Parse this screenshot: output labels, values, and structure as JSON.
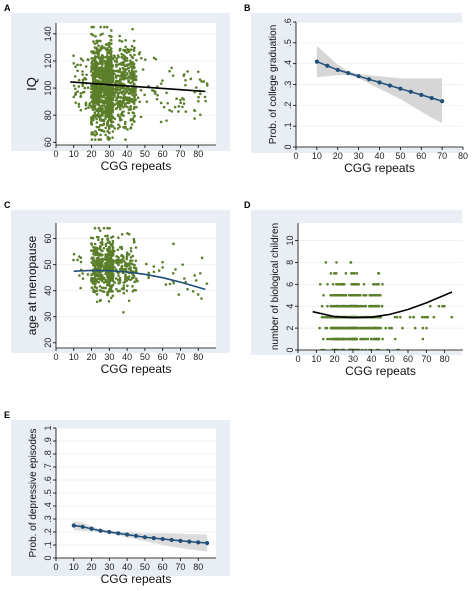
{
  "chart_data": [
    {
      "id": "A",
      "panel_label": "A",
      "type": "scatter",
      "xlabel": "CGG repeats",
      "ylabel": "IQ",
      "xlim": [
        0,
        90
      ],
      "ylim": [
        58,
        148
      ],
      "xticks": [
        0,
        10,
        20,
        30,
        40,
        50,
        60,
        70,
        80
      ],
      "yticks": [
        60,
        80,
        100,
        120,
        140
      ],
      "grid": true,
      "point_color": "#5b7f2b",
      "scatter_clusters": [
        {
          "x_min": 20,
          "x_max": 27,
          "y_mean": 101,
          "y_sd": 16,
          "y_min": 62,
          "y_max": 145,
          "n": 520
        },
        {
          "x_min": 28,
          "x_max": 32,
          "y_mean": 101,
          "y_sd": 15,
          "y_min": 62,
          "y_max": 145,
          "n": 620
        },
        {
          "x_min": 33,
          "x_max": 45,
          "y_mean": 101,
          "y_sd": 15,
          "y_min": 62,
          "y_max": 145,
          "n": 380
        },
        {
          "x_min": 10,
          "x_max": 19,
          "y_mean": 103,
          "y_sd": 13,
          "y_min": 70,
          "y_max": 135,
          "n": 50
        },
        {
          "x_min": 46,
          "x_max": 85,
          "y_mean": 100,
          "y_sd": 14,
          "y_min": 75,
          "y_max": 128,
          "n": 70
        }
      ],
      "series": [
        {
          "kind": "line",
          "color": "#000000",
          "x": [
            8,
            84
          ],
          "y": [
            104.5,
            97.5
          ]
        }
      ]
    },
    {
      "id": "B",
      "panel_label": "B",
      "type": "line",
      "xlabel": "CGG repeats",
      "ylabel": "Prob. of college graduation",
      "xlim": [
        0,
        80
      ],
      "ylim": [
        0,
        0.6
      ],
      "xticks": [
        0,
        10,
        20,
        30,
        40,
        50,
        60,
        70,
        80
      ],
      "yticks": [
        0,
        0.1,
        0.2,
        0.3,
        0.4,
        0.5,
        0.6
      ],
      "ytick_labels": [
        "0",
        ".1",
        ".2",
        ".3",
        ".4",
        ".5",
        ".6"
      ],
      "grid": true,
      "line_color": "#1f4e79",
      "marker": "circle",
      "band_color": "#c8c8c8",
      "x": [
        10,
        15,
        20,
        25,
        30,
        35,
        40,
        45,
        50,
        55,
        60,
        65,
        70
      ],
      "y": [
        0.41,
        0.39,
        0.37,
        0.355,
        0.34,
        0.325,
        0.31,
        0.295,
        0.28,
        0.265,
        0.25,
        0.235,
        0.22
      ],
      "ci_lower": [
        0.335,
        0.34,
        0.345,
        0.345,
        0.33,
        0.305,
        0.28,
        0.255,
        0.23,
        0.2,
        0.17,
        0.14,
        0.115
      ],
      "ci_upper": [
        0.485,
        0.44,
        0.395,
        0.365,
        0.35,
        0.345,
        0.34,
        0.335,
        0.33,
        0.33,
        0.33,
        0.33,
        0.33
      ]
    },
    {
      "id": "C",
      "panel_label": "C",
      "type": "scatter",
      "xlabel": "CGG repeats",
      "ylabel": "age at menopause",
      "xlim": [
        0,
        90
      ],
      "ylim": [
        18,
        66
      ],
      "xticks": [
        0,
        10,
        20,
        30,
        40,
        50,
        60,
        70,
        80
      ],
      "yticks": [
        20,
        30,
        40,
        50,
        60
      ],
      "grid": true,
      "point_color": "#5b7f2b",
      "scatter_clusters": [
        {
          "x_min": 20,
          "x_max": 27,
          "y_mean": 49,
          "y_sd": 5.5,
          "y_min": 20,
          "y_max": 64,
          "n": 230
        },
        {
          "x_min": 28,
          "x_max": 32,
          "y_mean": 49,
          "y_sd": 5,
          "y_min": 30,
          "y_max": 64,
          "n": 260
        },
        {
          "x_min": 33,
          "x_max": 45,
          "y_mean": 48.5,
          "y_sd": 5,
          "y_min": 28,
          "y_max": 62,
          "n": 150
        },
        {
          "x_min": 10,
          "x_max": 19,
          "y_mean": 48,
          "y_sd": 5,
          "y_min": 38,
          "y_max": 58,
          "n": 12
        },
        {
          "x_min": 46,
          "x_max": 85,
          "y_mean": 47,
          "y_sd": 5,
          "y_min": 37,
          "y_max": 58,
          "n": 30
        }
      ],
      "series": [
        {
          "kind": "curve",
          "color": "#1f4e79",
          "x": [
            10,
            20,
            30,
            40,
            50,
            60,
            70,
            84
          ],
          "y": [
            47.5,
            47.8,
            47.7,
            47.2,
            46.3,
            45.0,
            43.3,
            40.5
          ]
        }
      ]
    },
    {
      "id": "D",
      "panel_label": "D",
      "type": "scatter",
      "xlabel": "CGG repeats",
      "ylabel": "number of biological children",
      "xlim": [
        0,
        90
      ],
      "ylim": [
        0,
        11.6
      ],
      "xticks": [
        0,
        10,
        20,
        30,
        40,
        50,
        60,
        70,
        80
      ],
      "yticks": [
        0,
        2,
        4,
        6,
        8,
        10
      ],
      "grid": true,
      "point_color": "#5b7f2b",
      "discrete_y": true,
      "scatter_clusters": [
        {
          "x_min": 18,
          "x_max": 27,
          "y_mean": 3,
          "y_sd": 1.6,
          "y_min": 0,
          "y_max": 10,
          "n": 260
        },
        {
          "x_min": 28,
          "x_max": 32,
          "y_mean": 3,
          "y_sd": 1.8,
          "y_min": 0,
          "y_max": 11,
          "n": 300
        },
        {
          "x_min": 33,
          "x_max": 45,
          "y_mean": 3,
          "y_sd": 1.5,
          "y_min": 0,
          "y_max": 9,
          "n": 200
        },
        {
          "x_min": 10,
          "x_max": 17,
          "y_mean": 3,
          "y_sd": 1.8,
          "y_min": 0,
          "y_max": 10,
          "n": 20
        },
        {
          "x_min": 46,
          "x_max": 85,
          "y_mean": 3,
          "y_sd": 1.6,
          "y_min": 0,
          "y_max": 9,
          "n": 35
        }
      ],
      "series": [
        {
          "kind": "curve",
          "color": "#000000",
          "x": [
            8,
            20,
            30,
            40,
            50,
            60,
            70,
            84
          ],
          "y": [
            3.5,
            3.05,
            2.95,
            3.0,
            3.25,
            3.7,
            4.3,
            5.3
          ]
        }
      ]
    },
    {
      "id": "E",
      "panel_label": "E",
      "type": "line",
      "xlabel": "CGG repeats",
      "ylabel": "Prob. of depressive episodes",
      "xlim": [
        0,
        90
      ],
      "ylim": [
        0,
        1
      ],
      "xticks": [
        0,
        10,
        20,
        30,
        40,
        50,
        60,
        70,
        80
      ],
      "yticks": [
        0,
        0.1,
        0.2,
        0.3,
        0.4,
        0.5,
        0.6,
        0.7,
        0.8,
        0.9,
        1
      ],
      "ytick_labels": [
        "0",
        ".1",
        ".2",
        ".3",
        ".4",
        ".5",
        ".6",
        ".7",
        ".8",
        ".9",
        "1"
      ],
      "grid": true,
      "line_color": "#1f4e79",
      "marker": "circle",
      "band_color": "#d0d0d0",
      "x": [
        10,
        15,
        20,
        25,
        30,
        35,
        40,
        45,
        50,
        55,
        60,
        65,
        70,
        75,
        80,
        85
      ],
      "y": [
        0.25,
        0.24,
        0.225,
        0.21,
        0.2,
        0.19,
        0.18,
        0.17,
        0.16,
        0.153,
        0.146,
        0.139,
        0.132,
        0.126,
        0.12,
        0.115
      ],
      "ci_lower": [
        0.215,
        0.21,
        0.205,
        0.198,
        0.19,
        0.175,
        0.16,
        0.145,
        0.13,
        0.115,
        0.1,
        0.088,
        0.077,
        0.066,
        0.058,
        0.05
      ],
      "ci_upper": [
        0.285,
        0.27,
        0.245,
        0.222,
        0.21,
        0.205,
        0.2,
        0.195,
        0.19,
        0.19,
        0.19,
        0.19,
        0.187,
        0.185,
        0.182,
        0.18
      ]
    }
  ]
}
